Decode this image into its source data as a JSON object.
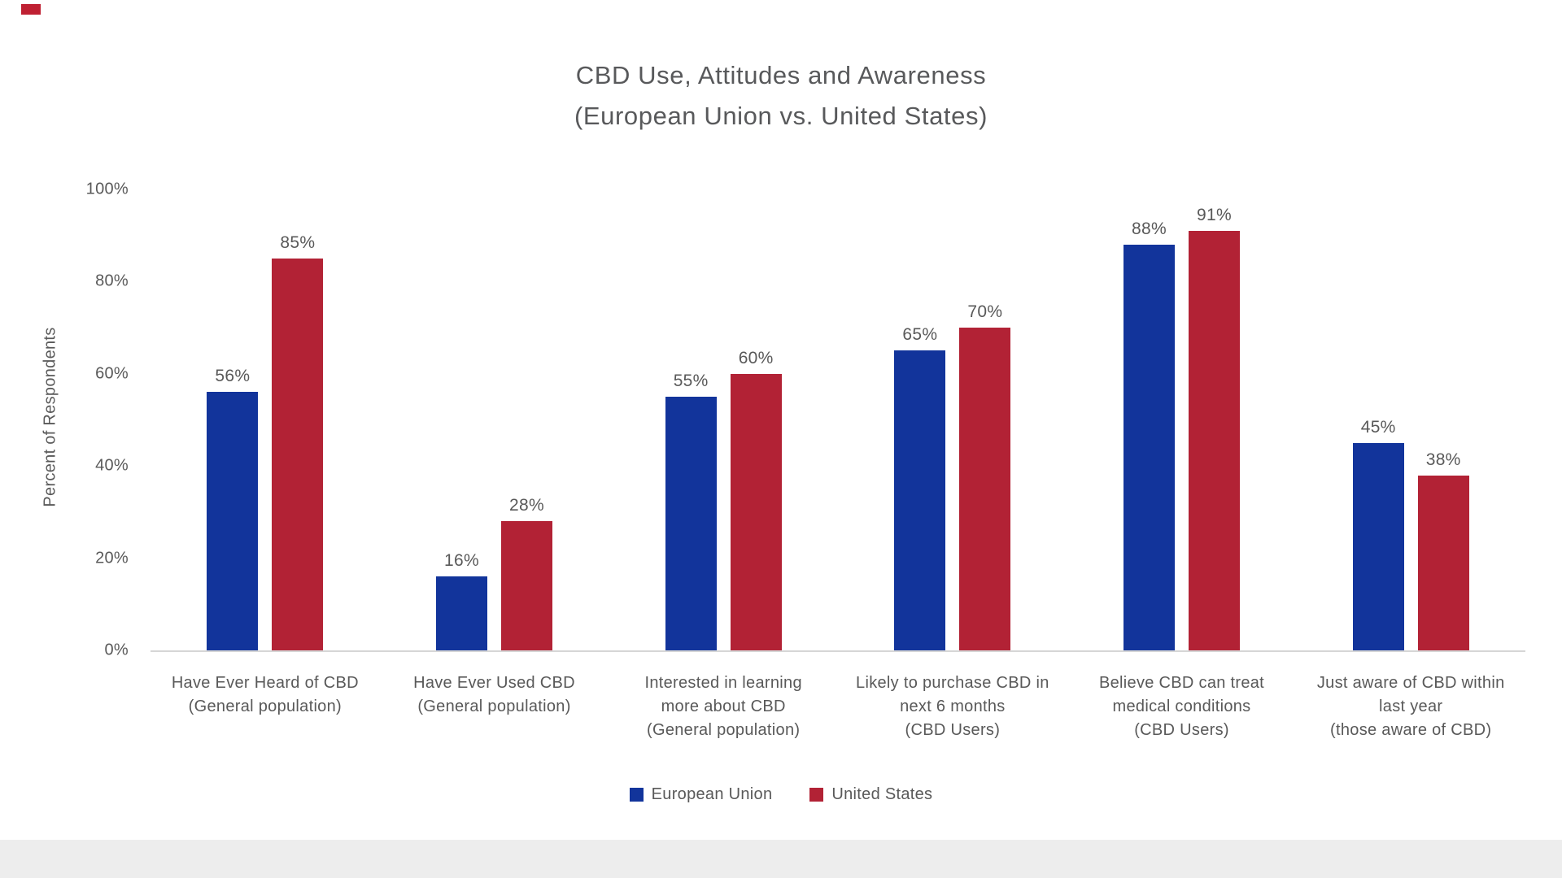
{
  "page": {
    "background": "#ffffff",
    "text_color": "#595959",
    "axis_line_color": "#d6d6d6",
    "footer_strip_color": "#ededed",
    "corner_mark_color": "#bf2032"
  },
  "chart_data": {
    "type": "bar",
    "title": "CBD Use, Attitudes and Awareness",
    "subtitle": "(European Union vs. United States)",
    "ylabel": "Percent of Respondents",
    "xlabel": "",
    "ylim": [
      0,
      100
    ],
    "yticks": [
      0,
      20,
      40,
      60,
      80,
      100
    ],
    "ytick_suffix": "%",
    "grid": false,
    "data_labels": true,
    "data_label_suffix": "%",
    "legend_position": "bottom",
    "categories": [
      "Have Ever Heard of CBD\n(General population)",
      "Have Ever Used CBD\n(General population)",
      "Interested in learning\nmore about CBD\n(General population)",
      "Likely to purchase CBD in\nnext 6 months\n(CBD Users)",
      "Believe CBD can treat\nmedical conditions\n(CBD Users)",
      "Just aware of CBD within\nlast year\n(those aware of CBD)"
    ],
    "series": [
      {
        "name": "European Union",
        "color": "#12349b",
        "values": [
          56,
          16,
          55,
          65,
          88,
          45
        ]
      },
      {
        "name": "United States",
        "color": "#b22235",
        "values": [
          85,
          28,
          60,
          70,
          91,
          38
        ]
      }
    ]
  }
}
